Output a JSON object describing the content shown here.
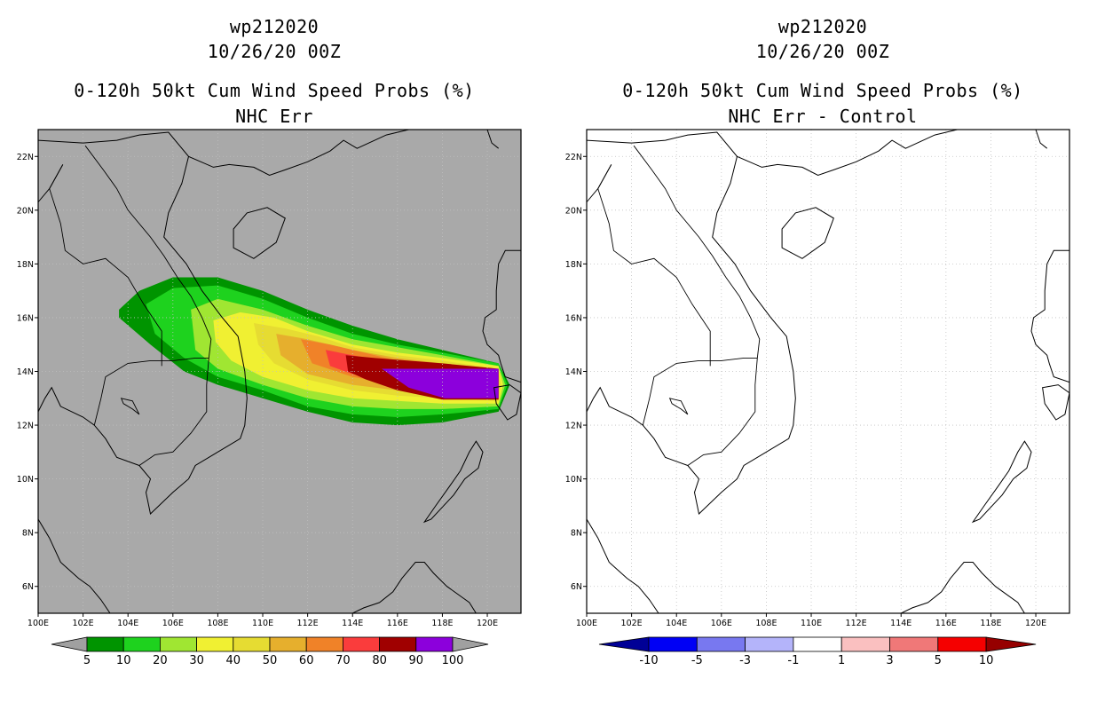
{
  "panels": [
    {
      "id": "left",
      "title_lines": [
        "wp212020",
        "10/26/20 00Z",
        "0-120h 50kt Cum Wind Speed Probs (%)",
        "NHC Err"
      ],
      "background": "#a9a9a9",
      "x_ticks": [
        "100E",
        "102E",
        "104E",
        "106E",
        "108E",
        "110E",
        "112E",
        "114E",
        "116E",
        "118E",
        "120E"
      ],
      "y_ticks": [
        "6N",
        "8N",
        "10N",
        "12N",
        "14N",
        "16N",
        "18N",
        "20N",
        "22N"
      ],
      "colorbar": {
        "labels": [
          "5",
          "10",
          "20",
          "30",
          "40",
          "50",
          "60",
          "70",
          "80",
          "90",
          "100"
        ],
        "colors": [
          "#a0a0a0",
          "#009400",
          "#1ed21e",
          "#a0e632",
          "#f0f032",
          "#e6dc32",
          "#e6af2d",
          "#f08228",
          "#fa3c3c",
          "#a00000",
          "#8c00dc",
          "#a0a0a0"
        ]
      }
    },
    {
      "id": "right",
      "title_lines": [
        "wp212020",
        "10/26/20 00Z",
        "0-120h 50kt Cum Wind Speed Probs (%)",
        "NHC Err - Control"
      ],
      "background": "#ffffff",
      "x_ticks": [
        "100E",
        "102E",
        "104E",
        "106E",
        "108E",
        "110E",
        "112E",
        "114E",
        "116E",
        "118E",
        "120E"
      ],
      "y_ticks": [
        "6N",
        "8N",
        "10N",
        "12N",
        "14N",
        "16N",
        "18N",
        "20N",
        "22N"
      ],
      "colorbar": {
        "labels": [
          "-10",
          "-5",
          "-3",
          "-1",
          "1",
          "3",
          "5",
          "10"
        ],
        "colors": [
          "#000096",
          "#0000f5",
          "#7878f0",
          "#b4b4fa",
          "#ffffff",
          "#fac0c0",
          "#f07878",
          "#f50000",
          "#960000"
        ]
      }
    }
  ],
  "map_extent": {
    "lon": [
      100,
      121.5
    ],
    "lat": [
      5,
      23
    ]
  },
  "probability_swath": [
    {
      "level": 5,
      "color": "#009400",
      "points": [
        [
          103.6,
          16.3
        ],
        [
          104.5,
          17.0
        ],
        [
          106,
          17.5
        ],
        [
          108,
          17.5
        ],
        [
          110,
          17.0
        ],
        [
          112,
          16.3
        ],
        [
          114,
          15.7
        ],
        [
          116,
          15.2
        ],
        [
          118,
          14.8
        ],
        [
          120.5,
          14.3
        ],
        [
          121.0,
          13.5
        ],
        [
          120.5,
          12.5
        ],
        [
          118,
          12.1
        ],
        [
          116,
          12.0
        ],
        [
          114,
          12.1
        ],
        [
          112,
          12.5
        ],
        [
          110,
          13.0
        ],
        [
          108,
          13.5
        ],
        [
          106.5,
          14.0
        ],
        [
          105,
          15.0
        ],
        [
          103.6,
          16.0
        ]
      ]
    },
    {
      "level": 10,
      "color": "#1ed21e",
      "points": [
        [
          104.8,
          16.5
        ],
        [
          106,
          17.1
        ],
        [
          108,
          17.2
        ],
        [
          110,
          16.7
        ],
        [
          112,
          16.0
        ],
        [
          114,
          15.4
        ],
        [
          116,
          15.0
        ],
        [
          118,
          14.7
        ],
        [
          120.5,
          14.3
        ],
        [
          120.9,
          13.5
        ],
        [
          120.5,
          12.6
        ],
        [
          118,
          12.4
        ],
        [
          116,
          12.3
        ],
        [
          114,
          12.4
        ],
        [
          112,
          12.7
        ],
        [
          110,
          13.3
        ],
        [
          108,
          13.8
        ],
        [
          106.5,
          14.5
        ],
        [
          105.2,
          15.4
        ]
      ]
    },
    {
      "level": 20,
      "color": "#a0e632",
      "points": [
        [
          106.8,
          16.3
        ],
        [
          108,
          16.7
        ],
        [
          110,
          16.3
        ],
        [
          112,
          15.7
        ],
        [
          114,
          15.2
        ],
        [
          116,
          14.9
        ],
        [
          118,
          14.6
        ],
        [
          120.5,
          14.2
        ],
        [
          120.8,
          13.5
        ],
        [
          120.5,
          12.7
        ],
        [
          118,
          12.6
        ],
        [
          116,
          12.6
        ],
        [
          114,
          12.7
        ],
        [
          112,
          13.0
        ],
        [
          110,
          13.5
        ],
        [
          108,
          14.1
        ],
        [
          107,
          14.8
        ]
      ]
    },
    {
      "level": 30,
      "color": "#f0f032",
      "points": [
        [
          107.8,
          15.9
        ],
        [
          109,
          16.2
        ],
        [
          110.5,
          16.0
        ],
        [
          112,
          15.5
        ],
        [
          114,
          15.0
        ],
        [
          116,
          14.7
        ],
        [
          118,
          14.5
        ],
        [
          120.5,
          14.2
        ],
        [
          120.7,
          13.5
        ],
        [
          120.5,
          12.8
        ],
        [
          118,
          12.8
        ],
        [
          116,
          12.9
        ],
        [
          114,
          13.0
        ],
        [
          112,
          13.3
        ],
        [
          110,
          13.8
        ],
        [
          108.6,
          14.4
        ],
        [
          107.9,
          15.1
        ]
      ]
    },
    {
      "level": 40,
      "color": "#e6dc32",
      "points": [
        [
          109.6,
          15.8
        ],
        [
          111,
          15.6
        ],
        [
          112.5,
          15.3
        ],
        [
          114,
          14.9
        ],
        [
          116,
          14.6
        ],
        [
          118,
          14.4
        ],
        [
          120.5,
          14.1
        ],
        [
          120.6,
          13.5
        ],
        [
          120.5,
          12.9
        ],
        [
          118,
          13.0
        ],
        [
          116,
          13.1
        ],
        [
          114,
          13.3
        ],
        [
          112,
          13.7
        ],
        [
          110.5,
          14.3
        ],
        [
          109.8,
          15.0
        ]
      ]
    },
    {
      "level": 50,
      "color": "#e6af2d",
      "points": [
        [
          110.6,
          15.4
        ],
        [
          112,
          15.2
        ],
        [
          114,
          14.8
        ],
        [
          116,
          14.5
        ],
        [
          118,
          14.3
        ],
        [
          120.5,
          14.1
        ],
        [
          120.5,
          13.0
        ],
        [
          118,
          13.1
        ],
        [
          116,
          13.3
        ],
        [
          114,
          13.5
        ],
        [
          112,
          13.9
        ],
        [
          110.8,
          14.6
        ]
      ]
    },
    {
      "level": 60,
      "color": "#f08228",
      "points": [
        [
          111.7,
          15.2
        ],
        [
          113,
          15.0
        ],
        [
          114.5,
          14.7
        ],
        [
          116,
          14.4
        ],
        [
          118,
          14.2
        ],
        [
          120.5,
          14.0
        ],
        [
          120.5,
          13.0
        ],
        [
          118,
          13.2
        ],
        [
          116,
          13.5
        ],
        [
          114,
          13.8
        ],
        [
          112.2,
          14.3
        ]
      ]
    },
    {
      "level": 70,
      "color": "#fa3c3c",
      "points": [
        [
          112.8,
          14.8
        ],
        [
          114,
          14.6
        ],
        [
          116,
          14.3
        ],
        [
          118,
          14.1
        ],
        [
          120.5,
          14.0
        ],
        [
          120.5,
          13.0
        ],
        [
          118,
          13.3
        ],
        [
          116,
          13.6
        ],
        [
          114,
          13.9
        ],
        [
          113,
          14.2
        ]
      ]
    },
    {
      "level": 80,
      "color": "#a00000",
      "points": [
        [
          113.7,
          14.6
        ],
        [
          115,
          14.5
        ],
        [
          118,
          14.3
        ],
        [
          120.5,
          14.1
        ],
        [
          120.5,
          12.95
        ],
        [
          118,
          12.95
        ],
        [
          116,
          13.3
        ],
        [
          114.6,
          13.7
        ],
        [
          113.8,
          14.0
        ]
      ]
    },
    {
      "level": 90,
      "color": "#8c00dc",
      "points": [
        [
          115.3,
          14.1
        ],
        [
          120.5,
          14.1
        ],
        [
          120.5,
          13.0
        ],
        [
          118.1,
          13.0
        ],
        [
          116.5,
          13.4
        ]
      ]
    }
  ],
  "coastlines": [
    {
      "name": "china-vietnam-coast",
      "points": [
        [
          100,
          22.6
        ],
        [
          102,
          22.5
        ],
        [
          103.5,
          22.6
        ],
        [
          104.5,
          22.8
        ],
        [
          105.8,
          22.9
        ],
        [
          106.7,
          22.0
        ],
        [
          107.8,
          21.6
        ],
        [
          108.5,
          21.7
        ],
        [
          109.6,
          21.6
        ],
        [
          110.3,
          21.3
        ],
        [
          111.0,
          21.5
        ],
        [
          112.0,
          21.8
        ],
        [
          113.0,
          22.2
        ],
        [
          113.6,
          22.6
        ],
        [
          114.2,
          22.3
        ],
        [
          115.5,
          22.8
        ],
        [
          116.5,
          23.0
        ],
        [
          117.2,
          23.5
        ]
      ]
    },
    {
      "name": "vietnam-coast",
      "points": [
        [
          106.7,
          22.0
        ],
        [
          106.4,
          21.0
        ],
        [
          105.8,
          19.9
        ],
        [
          105.6,
          19.0
        ],
        [
          106.6,
          18.0
        ],
        [
          107.3,
          17.0
        ],
        [
          108.2,
          16.0
        ],
        [
          108.9,
          15.3
        ],
        [
          109.2,
          14.0
        ],
        [
          109.3,
          13.0
        ],
        [
          109.2,
          12.0
        ],
        [
          109.0,
          11.5
        ],
        [
          108.0,
          11.0
        ],
        [
          107.0,
          10.5
        ],
        [
          106.7,
          10.0
        ],
        [
          106.0,
          9.5
        ],
        [
          105.0,
          8.7
        ],
        [
          104.8,
          9.5
        ],
        [
          105.0,
          10.0
        ],
        [
          104.5,
          10.5
        ]
      ]
    },
    {
      "name": "gulf-of-thailand",
      "points": [
        [
          104.5,
          10.5
        ],
        [
          103.5,
          10.8
        ],
        [
          103.0,
          11.5
        ],
        [
          102.5,
          12.0
        ],
        [
          102.0,
          12.3
        ],
        [
          101.0,
          12.7
        ],
        [
          100.6,
          13.4
        ],
        [
          100.3,
          13.0
        ],
        [
          100.0,
          12.5
        ]
      ]
    },
    {
      "name": "malay-peninsula",
      "points": [
        [
          100.0,
          8.5
        ],
        [
          100.5,
          7.8
        ],
        [
          101.0,
          6.9
        ],
        [
          101.8,
          6.3
        ],
        [
          102.3,
          6.0
        ],
        [
          102.8,
          5.5
        ],
        [
          103.2,
          5.0
        ]
      ]
    },
    {
      "name": "hainan",
      "closed": true,
      "points": [
        [
          108.7,
          19.3
        ],
        [
          109.3,
          19.9
        ],
        [
          110.2,
          20.1
        ],
        [
          111.0,
          19.7
        ],
        [
          110.6,
          18.8
        ],
        [
          109.6,
          18.2
        ],
        [
          108.7,
          18.6
        ]
      ]
    },
    {
      "name": "luzon",
      "points": [
        [
          121.5,
          18.5
        ],
        [
          120.8,
          18.5
        ],
        [
          120.5,
          18.0
        ],
        [
          120.4,
          17.0
        ],
        [
          120.4,
          16.3
        ],
        [
          119.9,
          16.0
        ],
        [
          119.8,
          15.5
        ],
        [
          120.0,
          15.0
        ],
        [
          120.5,
          14.6
        ],
        [
          120.6,
          14.3
        ],
        [
          120.8,
          13.8
        ],
        [
          121.5,
          13.6
        ]
      ]
    },
    {
      "name": "mindoro",
      "closed": true,
      "points": [
        [
          120.3,
          13.4
        ],
        [
          121.0,
          13.5
        ],
        [
          121.5,
          13.2
        ],
        [
          121.3,
          12.4
        ],
        [
          120.9,
          12.2
        ],
        [
          120.4,
          12.8
        ]
      ]
    },
    {
      "name": "palawan",
      "closed": true,
      "points": [
        [
          119.5,
          11.4
        ],
        [
          119.8,
          11.0
        ],
        [
          119.6,
          10.4
        ],
        [
          119.0,
          10.0
        ],
        [
          118.5,
          9.4
        ],
        [
          117.5,
          8.5
        ],
        [
          117.2,
          8.4
        ],
        [
          117.7,
          9.0
        ],
        [
          118.3,
          9.7
        ],
        [
          118.8,
          10.3
        ],
        [
          119.2,
          11.0
        ]
      ]
    },
    {
      "name": "borneo",
      "points": [
        [
          113.0,
          5.0
        ],
        [
          114.0,
          5.0
        ],
        [
          114.5,
          5.2
        ],
        [
          115.2,
          5.4
        ],
        [
          115.8,
          5.8
        ],
        [
          116.2,
          6.3
        ],
        [
          116.8,
          6.9
        ],
        [
          117.2,
          6.9
        ],
        [
          117.6,
          6.5
        ],
        [
          118.2,
          6.0
        ],
        [
          119.2,
          5.4
        ],
        [
          119.5,
          5.0
        ]
      ]
    },
    {
      "name": "taiwan",
      "points": [
        [
          120.0,
          23.0
        ],
        [
          120.2,
          22.5
        ],
        [
          120.5,
          22.3
        ]
      ]
    }
  ],
  "borders": [
    {
      "name": "laos-west",
      "points": [
        [
          101.1,
          21.7
        ],
        [
          100.5,
          20.8
        ],
        [
          101.0,
          19.5
        ],
        [
          101.2,
          18.5
        ],
        [
          102.0,
          18.0
        ],
        [
          103.0,
          18.2
        ],
        [
          104.0,
          17.5
        ],
        [
          104.7,
          16.5
        ],
        [
          105.5,
          15.5
        ],
        [
          105.5,
          14.2
        ]
      ]
    },
    {
      "name": "vietnam-laos",
      "points": [
        [
          102.1,
          22.4
        ],
        [
          102.9,
          21.5
        ],
        [
          103.5,
          20.8
        ],
        [
          104.0,
          20.0
        ],
        [
          104.5,
          19.5
        ],
        [
          105.0,
          19.0
        ],
        [
          105.6,
          18.3
        ],
        [
          106.2,
          17.5
        ],
        [
          106.8,
          16.8
        ],
        [
          107.3,
          16.0
        ],
        [
          107.7,
          15.2
        ],
        [
          107.6,
          14.5
        ]
      ]
    },
    {
      "name": "thai-cambodia",
      "points": [
        [
          102.5,
          12.0
        ],
        [
          102.8,
          13.0
        ],
        [
          103.0,
          13.8
        ],
        [
          104.0,
          14.3
        ],
        [
          105.0,
          14.4
        ],
        [
          106.0,
          14.4
        ],
        [
          107.0,
          14.5
        ],
        [
          107.6,
          14.5
        ]
      ]
    },
    {
      "name": "cambodia-vietnam",
      "points": [
        [
          107.6,
          14.5
        ],
        [
          107.5,
          13.5
        ],
        [
          107.5,
          12.5
        ],
        [
          106.8,
          11.7
        ],
        [
          106.0,
          11.0
        ],
        [
          105.2,
          10.9
        ],
        [
          104.5,
          10.5
        ]
      ]
    },
    {
      "name": "myanmar-thai",
      "points": [
        [
          100.0,
          20.3
        ],
        [
          100.5,
          20.8
        ],
        [
          101.1,
          21.7
        ]
      ]
    },
    {
      "name": "tonle-sap",
      "closed": true,
      "points": [
        [
          103.7,
          13.0
        ],
        [
          104.2,
          12.9
        ],
        [
          104.5,
          12.4
        ],
        [
          104.2,
          12.6
        ],
        [
          103.8,
          12.8
        ]
      ]
    }
  ]
}
